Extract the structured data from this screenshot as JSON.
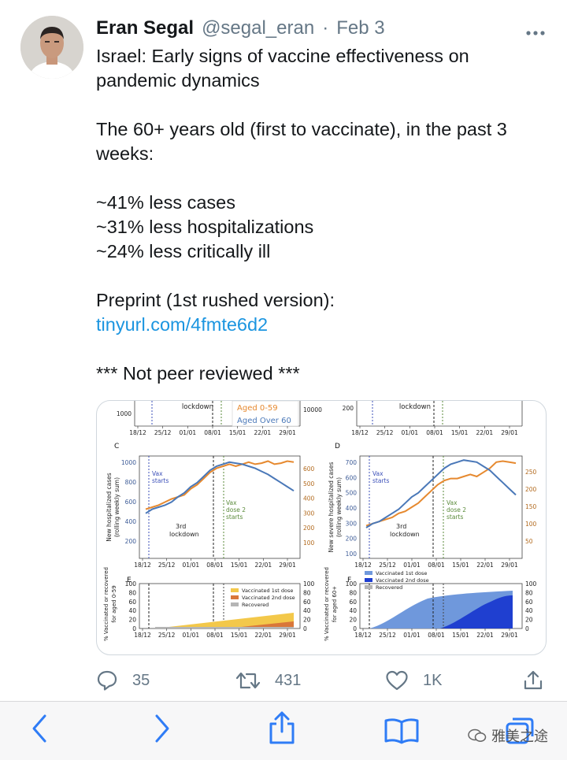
{
  "tweet": {
    "name": "Eran Segal",
    "handle": "@segal_eran",
    "date_sep": "·",
    "date": "Feb 3",
    "more_icon": "more-horizontal-icon",
    "lines": {
      "l1": "Israel: Early signs of vaccine effectiveness on",
      "l2": "pandemic dynamics",
      "l3": "The 60+ years old (first to vaccinate), in the past 3",
      "l4": "weeks:",
      "l5": "~41% less cases",
      "l6": "~31% less hospitalizations",
      "l7": "~24% less critically ill",
      "l8": "Preprint (1st rushed version):",
      "link": "tinyurl.com/4fmte6d2",
      "l9": "*** Not peer reviewed ***"
    },
    "actions": {
      "reply_count": "35",
      "retweet_count": "431",
      "like_count": "1K"
    }
  },
  "figure": {
    "x_ticks": [
      "18/12",
      "25/12",
      "01/01",
      "08/01",
      "15/01",
      "22/01",
      "29/01"
    ],
    "top_strip": {
      "left_tick": "1000",
      "right_tick": "10000",
      "lockdown_label": "lockdown",
      "legend_young": "Aged 0-59",
      "legend_old": "Aged Over 60",
      "right_left_tick": "200",
      "right_lockdown_label": "lockdown"
    },
    "panel_c": {
      "letter": "C",
      "ylabel_1": "New hospitalized cases",
      "ylabel_2": "(rolling weekly sum)",
      "left_ticks": [
        "1000",
        "800",
        "600",
        "400",
        "200"
      ],
      "right_ticks": [
        "600",
        "500",
        "400",
        "300",
        "200",
        "100"
      ],
      "vax_start": [
        "Vax",
        "starts"
      ],
      "lockdown": [
        "3rd",
        "lockdown"
      ],
      "dose2": [
        "Vax",
        "dose 2",
        "starts"
      ]
    },
    "panel_d": {
      "letter": "D",
      "ylabel_1": "New severe hospitalized cases",
      "ylabel_2": "(rolling weekly sum)",
      "left_ticks": [
        "700",
        "600",
        "500",
        "400",
        "300",
        "200",
        "100"
      ],
      "right_ticks": [
        "250",
        "200",
        "150",
        "100",
        "50"
      ],
      "vax_start": [
        "Vax",
        "starts"
      ],
      "lockdown": [
        "3rd",
        "lockdown"
      ],
      "dose2": [
        "Vax",
        "dose 2",
        "starts"
      ]
    },
    "panel_e": {
      "letter": "E",
      "ylabel_1": "% Vaccinated or recovered",
      "ylabel_2": "for aged 0-59",
      "ticks": [
        "100",
        "80",
        "60",
        "40",
        "20",
        "0"
      ],
      "legend": [
        "Vaccinated 1st dose",
        "Vaccinated 2nd dose",
        "Recovered"
      ]
    },
    "panel_f": {
      "letter": "F",
      "ylabel_1": "% Vaccinated or recovered",
      "ylabel_2": "for aged 60+",
      "ticks": [
        "100",
        "80",
        "60",
        "40",
        "20",
        "0"
      ],
      "legend": [
        "Vaccinated 1st dose",
        "Vaccinated 2nd dose",
        "Recovered"
      ]
    }
  },
  "browser": {
    "back_icon": "chevron-left-icon",
    "forward_icon": "chevron-right-icon",
    "share_icon": "share-icon",
    "bookmarks_icon": "book-icon",
    "tabs_icon": "tabs-icon",
    "watermark": "雅美之途"
  },
  "colors": {
    "link": "#1b95e0",
    "young": "#e6892f",
    "old": "#4a78b8",
    "dose1_e": "#f3c84a",
    "dose2_e": "#d9773a",
    "dose1_f": "#6f98dc",
    "dose2_f": "#1f3fd0",
    "recovered": "#b5b5b5"
  }
}
